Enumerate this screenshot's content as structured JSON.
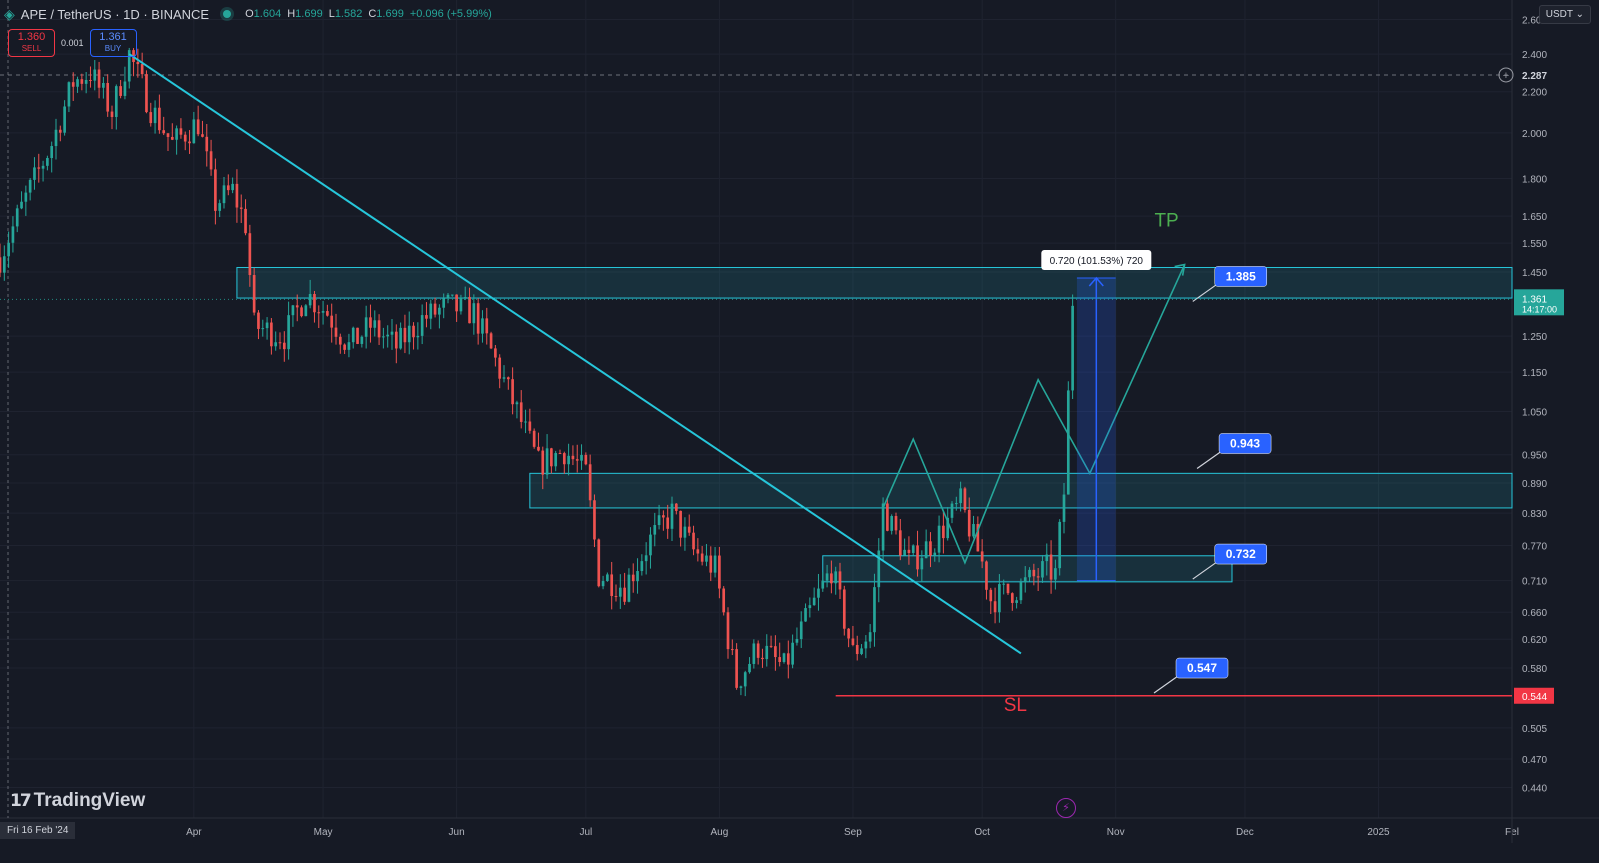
{
  "header": {
    "symbol": "APE / TetherUS · 1D · BINANCE",
    "open_label": "O",
    "open": "1.604",
    "high_label": "H",
    "high": "1.699",
    "low_label": "L",
    "low": "1.582",
    "close_label": "C",
    "close": "1.699",
    "change": "+0.096 (+5.99%)"
  },
  "trade": {
    "sell_price": "1.360",
    "sell_label": "SELL",
    "spread": "0.001",
    "buy_price": "1.361",
    "buy_label": "BUY"
  },
  "currency_button": "USDT",
  "logo_text": "TradingView",
  "first_date": "Fri 16 Feb '24",
  "colors": {
    "bg": "#161a25",
    "up": "#26a69a",
    "down": "#ef5350",
    "cyan": "#26c6da",
    "blue": "#2962ff",
    "red": "#f23645",
    "tp": "#4caf50"
  },
  "chart_data": {
    "type": "candlestick",
    "y_scale": "log",
    "ylim": [
      0.41,
      2.72
    ],
    "y_ticks": [
      "2.600",
      "2.400",
      "2.200",
      "2.000",
      "1.800",
      "1.650",
      "1.550",
      "1.450",
      "1.250",
      "1.150",
      "1.050",
      "0.950",
      "0.890",
      "0.830",
      "0.770",
      "0.710",
      "0.660",
      "0.620",
      "0.580",
      "0.505",
      "0.470",
      "0.440"
    ],
    "x_start": "2024-02-16",
    "x_ticks": [
      {
        "date": "2024-04-01",
        "label": "Apr"
      },
      {
        "date": "2024-05-01",
        "label": "May"
      },
      {
        "date": "2024-06-01",
        "label": "Jun"
      },
      {
        "date": "2024-07-01",
        "label": "Jul"
      },
      {
        "date": "2024-08-01",
        "label": "Aug"
      },
      {
        "date": "2024-09-01",
        "label": "Sep"
      },
      {
        "date": "2024-10-01",
        "label": "Oct"
      },
      {
        "date": "2024-11-01",
        "label": "Nov"
      },
      {
        "date": "2024-12-01",
        "label": "Dec"
      },
      {
        "date": "2025-01-01",
        "label": "2025"
      },
      {
        "date": "2025-02-01",
        "label": "Fel"
      }
    ],
    "x_end": "2025-02-01",
    "price_path": [
      {
        "date": "2024-02-16",
        "price": 1.5
      },
      {
        "date": "2024-02-22",
        "price": 1.72
      },
      {
        "date": "2024-02-28",
        "price": 1.95
      },
      {
        "date": "2024-03-04",
        "price": 2.25
      },
      {
        "date": "2024-03-08",
        "price": 2.3
      },
      {
        "date": "2024-03-13",
        "price": 2.1
      },
      {
        "date": "2024-03-17",
        "price": 2.4
      },
      {
        "date": "2024-03-22",
        "price": 2.12
      },
      {
        "date": "2024-03-27",
        "price": 1.95
      },
      {
        "date": "2024-04-02",
        "price": 2.05
      },
      {
        "date": "2024-04-06",
        "price": 1.7
      },
      {
        "date": "2024-04-10",
        "price": 1.75
      },
      {
        "date": "2024-04-13",
        "price": 1.62
      },
      {
        "date": "2024-04-15",
        "price": 1.28
      },
      {
        "date": "2024-04-22",
        "price": 1.25
      },
      {
        "date": "2024-04-27",
        "price": 1.38
      },
      {
        "date": "2024-05-02",
        "price": 1.32
      },
      {
        "date": "2024-05-07",
        "price": 1.22
      },
      {
        "date": "2024-05-12",
        "price": 1.28
      },
      {
        "date": "2024-05-18",
        "price": 1.22
      },
      {
        "date": "2024-05-24",
        "price": 1.3
      },
      {
        "date": "2024-05-30",
        "price": 1.34
      },
      {
        "date": "2024-06-05",
        "price": 1.32
      },
      {
        "date": "2024-06-10",
        "price": 1.18
      },
      {
        "date": "2024-06-15",
        "price": 1.05
      },
      {
        "date": "2024-06-20",
        "price": 0.93
      },
      {
        "date": "2024-06-26",
        "price": 0.96
      },
      {
        "date": "2024-07-01",
        "price": 0.91
      },
      {
        "date": "2024-07-04",
        "price": 0.72
      },
      {
        "date": "2024-07-10",
        "price": 0.7
      },
      {
        "date": "2024-07-16",
        "price": 0.78
      },
      {
        "date": "2024-07-21",
        "price": 0.83
      },
      {
        "date": "2024-07-26",
        "price": 0.76
      },
      {
        "date": "2024-07-31",
        "price": 0.73
      },
      {
        "date": "2024-08-05",
        "price": 0.56
      },
      {
        "date": "2024-08-10",
        "price": 0.61
      },
      {
        "date": "2024-08-16",
        "price": 0.58
      },
      {
        "date": "2024-08-22",
        "price": 0.66
      },
      {
        "date": "2024-08-27",
        "price": 0.73
      },
      {
        "date": "2024-09-01",
        "price": 0.6
      },
      {
        "date": "2024-09-05",
        "price": 0.63
      },
      {
        "date": "2024-09-08",
        "price": 0.84
      },
      {
        "date": "2024-09-14",
        "price": 0.74
      },
      {
        "date": "2024-09-20",
        "price": 0.78
      },
      {
        "date": "2024-09-26",
        "price": 0.85
      },
      {
        "date": "2024-10-01",
        "price": 0.74
      },
      {
        "date": "2024-10-03",
        "price": 0.68
      },
      {
        "date": "2024-10-10",
        "price": 0.7
      },
      {
        "date": "2024-10-16",
        "price": 0.73
      },
      {
        "date": "2024-10-18",
        "price": 0.72
      },
      {
        "date": "2024-10-20",
        "price": 0.87
      },
      {
        "date": "2024-10-22",
        "price": 1.36
      }
    ],
    "lines": [
      {
        "name": "downtrend",
        "color": "#26c6da",
        "from": {
          "date": "2024-03-17",
          "price": 2.4
        },
        "to": {
          "date": "2024-10-10",
          "price": 0.6
        }
      }
    ],
    "zones": [
      {
        "name": "top-zone",
        "from_date": "2024-04-11",
        "lo": 1.365,
        "hi": 1.465
      },
      {
        "name": "mid-zone",
        "from_date": "2024-06-18",
        "lo": 0.84,
        "hi": 0.91
      },
      {
        "name": "low-zone",
        "from_date": "2024-08-25",
        "to_date": "2024-11-28",
        "lo": 0.708,
        "hi": 0.752
      }
    ],
    "projection": [
      {
        "date": "2024-09-08",
        "price": 0.84
      },
      {
        "date": "2024-09-15",
        "price": 0.985
      },
      {
        "date": "2024-09-27",
        "price": 0.74
      },
      {
        "date": "2024-10-14",
        "price": 1.13
      },
      {
        "date": "2024-10-26",
        "price": 0.91
      },
      {
        "date": "2024-11-17",
        "price": 1.475
      }
    ],
    "measure": {
      "label": "0.720 (101.53%) 720",
      "from_date": "2024-10-23",
      "to_date": "2024-11-01",
      "lo": 0.71,
      "hi": 1.43
    },
    "sl_line": {
      "price": 0.544,
      "from_date": "2024-08-28"
    },
    "level_labels": [
      {
        "text": "1.385",
        "date": "2024-11-24",
        "price": 1.435
      },
      {
        "text": "0.943",
        "date": "2024-11-25",
        "price": 0.975
      },
      {
        "text": "0.732",
        "date": "2024-11-24",
        "price": 0.755
      },
      {
        "text": "0.547",
        "date": "2024-11-15",
        "price": 0.58
      }
    ],
    "annotations": [
      {
        "text": "TP",
        "date": "2024-11-10",
        "price": 1.61,
        "color": "#4caf50"
      },
      {
        "text": "SL",
        "date": "2024-10-06",
        "price": 0.525,
        "color": "#f23645"
      }
    ],
    "axis_badges": [
      {
        "text": "2.287",
        "price": 2.287,
        "style": "crosshair"
      },
      {
        "text": "1.361",
        "sub": "14:17:00",
        "price": 1.361,
        "style": "green"
      },
      {
        "text": "0.544",
        "price": 0.544,
        "style": "red"
      }
    ]
  }
}
